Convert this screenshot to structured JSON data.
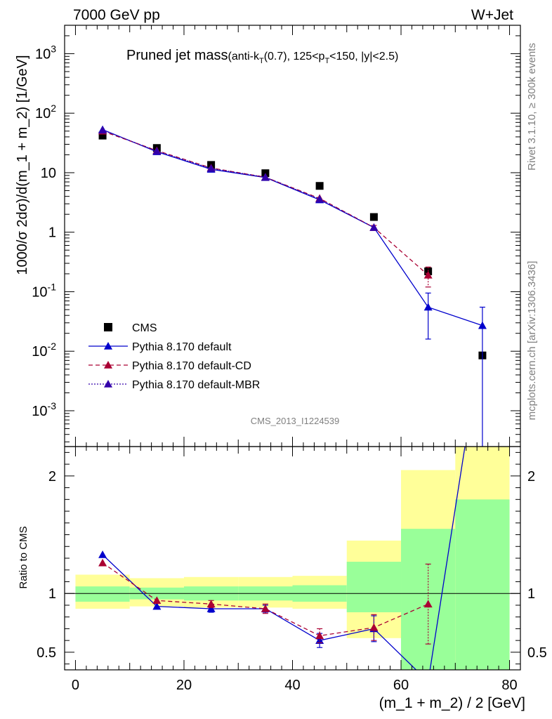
{
  "header": {
    "left": "7000 GeV pp",
    "right": "W+Jet"
  },
  "side": {
    "rivet": "Rivet 3.1.10, ≥ 300k events",
    "mcplots": "mcplots.cern.ch [arXiv:1306.3436]"
  },
  "plot_title": {
    "main": "Pruned jet mass",
    "sub_pre": "(anti-k",
    "sub_sub1": "T",
    "sub_mid": "(0.7), 125<p",
    "sub_sub2": "T",
    "sub_post": "<150, |y|<2.5)"
  },
  "analysis_id": "CMS_2013_I1224539",
  "colors": {
    "data": "#000000",
    "default": "#0000cc",
    "cd": "#aa0033",
    "mbr": "#3300aa",
    "band_inner": "#99ff99",
    "band_outer": "#ffff99"
  },
  "chart_data": [
    {
      "type": "scatter",
      "name": "main",
      "ylabel": "1000/σ 2dσ)/d(m_1 + m_2) [1/GeV]",
      "yscale": "log",
      "xlim": [
        -2,
        82
      ],
      "ylim": [
        0.00025,
        3000
      ],
      "y_ticks": [
        {
          "v": 0.001,
          "b": "10",
          "e": "-3"
        },
        {
          "v": 0.01,
          "b": "10",
          "e": "-2"
        },
        {
          "v": 0.1,
          "b": "10",
          "e": "-1"
        },
        {
          "v": 1,
          "b": "1",
          "e": ""
        },
        {
          "v": 10,
          "b": "10",
          "e": ""
        },
        {
          "v": 100,
          "b": "10",
          "e": "2"
        },
        {
          "v": 1000,
          "b": "10",
          "e": "3"
        }
      ],
      "legend_position": "lower-left",
      "series": [
        {
          "name": "CMS",
          "style": "data",
          "x": [
            5,
            15,
            25,
            35,
            45,
            55,
            65,
            75
          ],
          "y": [
            42,
            26,
            13.5,
            9.8,
            6.0,
            1.8,
            0.22,
            0.0085
          ],
          "err": [
            0,
            0,
            0,
            0,
            0,
            0,
            0.03,
            0
          ]
        },
        {
          "name": "Pythia 8.170 default",
          "style": "default",
          "x": [
            5,
            15,
            25,
            35,
            45,
            55,
            65,
            75
          ],
          "y": [
            53,
            22.5,
            11.4,
            8.3,
            3.5,
            1.2,
            0.055,
            0.027
          ],
          "err_lo": [
            0,
            0,
            0,
            0,
            0,
            0,
            0.039,
            0.027
          ],
          "err_hi": [
            0,
            0,
            0,
            0,
            0,
            0,
            0.04,
            0.028
          ]
        },
        {
          "name": "Pythia 8.170 default-CD",
          "style": "cd",
          "x": [
            5,
            15,
            25,
            35,
            45,
            55,
            65
          ],
          "y": [
            50,
            23.5,
            12.0,
            8.4,
            3.7,
            1.2,
            0.19
          ],
          "err_lo": [
            0,
            0,
            0,
            0,
            0,
            0.1,
            0.07
          ],
          "err_hi": [
            0,
            0,
            0,
            0,
            0,
            0.1,
            0.07
          ]
        },
        {
          "name": "Pythia 8.170 default-MBR",
          "style": "mbr",
          "x": [
            5,
            15,
            25,
            35,
            45,
            55
          ],
          "y": [
            52,
            23.0,
            11.8,
            8.4,
            3.6,
            1.2
          ]
        }
      ]
    },
    {
      "type": "line",
      "name": "ratio",
      "xlabel": "(m_1 + m_2) / 2 [GeV]",
      "ylabel": "Ratio to CMS",
      "xlim": [
        -2,
        82
      ],
      "ylim": [
        0.35,
        2.25
      ],
      "x_ticks": [
        0,
        20,
        40,
        60,
        80
      ],
      "y_ticks": [
        0.5,
        1,
        2
      ],
      "bands": {
        "x_edges": [
          0,
          10,
          20,
          30,
          40,
          50,
          60,
          70,
          80
        ],
        "inner": [
          [
            0.93,
            1.06
          ],
          [
            0.95,
            1.05
          ],
          [
            0.94,
            1.06
          ],
          [
            0.94,
            1.06
          ],
          [
            0.93,
            1.07
          ],
          [
            0.84,
            1.27
          ],
          [
            0.35,
            1.55
          ],
          [
            0.35,
            1.8
          ]
        ],
        "outer": [
          [
            0.87,
            1.16
          ],
          [
            0.89,
            1.13
          ],
          [
            0.88,
            1.14
          ],
          [
            0.88,
            1.14
          ],
          [
            0.87,
            1.15
          ],
          [
            0.62,
            1.45
          ],
          [
            0.35,
            2.05
          ],
          [
            0.35,
            2.25
          ]
        ]
      },
      "series": [
        {
          "name": "Pythia 8.170 default",
          "style": "default",
          "x": [
            5,
            15,
            25,
            35,
            45,
            55,
            65,
            75
          ],
          "y": [
            1.33,
            0.89,
            0.87,
            0.87,
            0.6,
            0.7,
            0.25,
            3.2
          ],
          "err": [
            0,
            0,
            0.03,
            0.03,
            0.06,
            0.11,
            0,
            0
          ]
        },
        {
          "name": "Pythia 8.170 default-CD",
          "style": "cd",
          "x": [
            5,
            15,
            25,
            35,
            45,
            55,
            65
          ],
          "y": [
            1.26,
            0.94,
            0.91,
            0.87,
            0.64,
            0.71,
            0.91
          ],
          "err": [
            0,
            0,
            0.03,
            0.04,
            0.06,
            0.11,
            0.34
          ]
        }
      ]
    }
  ]
}
